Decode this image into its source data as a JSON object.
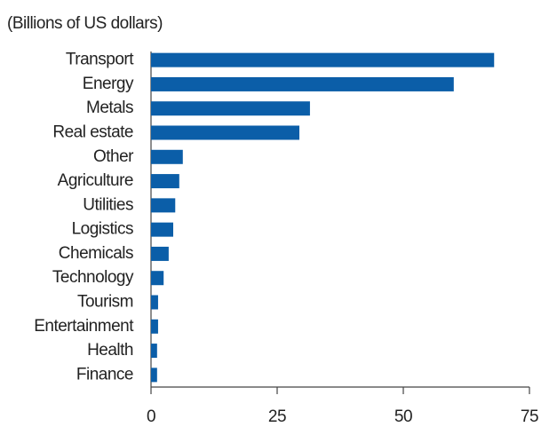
{
  "chart_data": {
    "type": "hbar",
    "subtitle": "(Billions of US dollars)",
    "categories": [
      "Transport",
      "Energy",
      "Metals",
      "Real estate",
      "Other",
      "Agriculture",
      "Utilities",
      "Logistics",
      "Chemicals",
      "Technology",
      "Tourism",
      "Entertainment",
      "Health",
      "Finance"
    ],
    "values": [
      68,
      60,
      31.5,
      29.4,
      6.3,
      5.6,
      4.8,
      4.4,
      3.5,
      2.5,
      1.4,
      1.4,
      1.2,
      1.2
    ],
    "color": "#0b5ea8",
    "xlim": [
      0,
      75
    ],
    "xticks": [
      0,
      25,
      50,
      75
    ],
    "grid": false
  }
}
